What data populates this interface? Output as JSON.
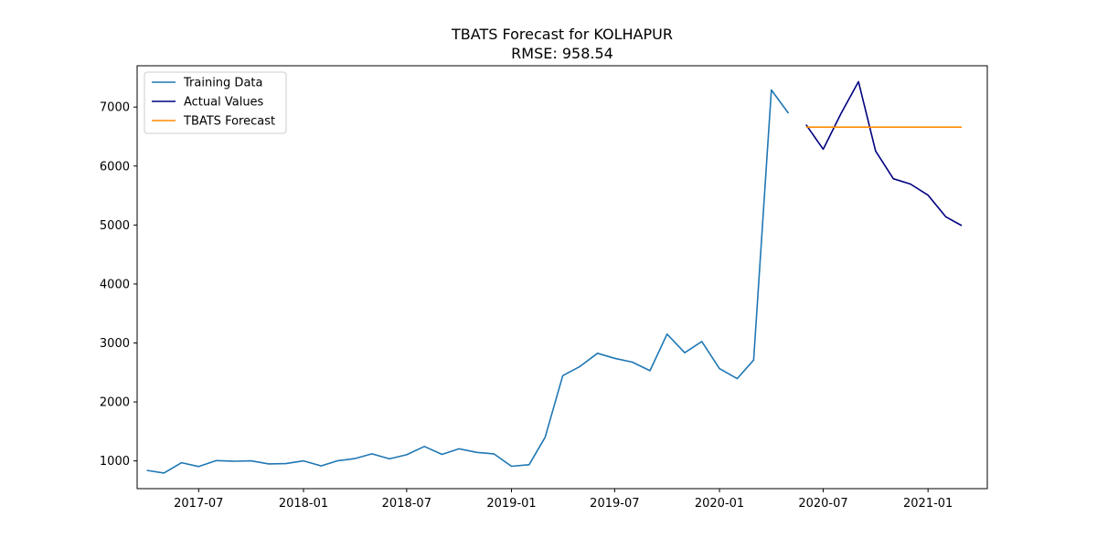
{
  "chart_data": {
    "type": "line",
    "title": "TBATS Forecast for KOLHAPUR",
    "subtitle": "RMSE: 958.54",
    "xlabel": "",
    "ylabel": "",
    "x_range": [
      "2017-03-15",
      "2021-04-15"
    ],
    "ylim": [
      530,
      7700
    ],
    "x_ticks": [
      {
        "date": "2017-07-01",
        "label": "2017-07"
      },
      {
        "date": "2018-01-01",
        "label": "2018-01"
      },
      {
        "date": "2018-07-01",
        "label": "2018-07"
      },
      {
        "date": "2019-01-01",
        "label": "2019-01"
      },
      {
        "date": "2019-07-01",
        "label": "2019-07"
      },
      {
        "date": "2020-01-01",
        "label": "2020-01"
      },
      {
        "date": "2020-07-01",
        "label": "2020-07"
      },
      {
        "date": "2021-01-01",
        "label": "2021-01"
      }
    ],
    "y_ticks": [
      1000,
      2000,
      3000,
      4000,
      5000,
      6000,
      7000
    ],
    "grid": false,
    "legend_position": "top-left",
    "series": [
      {
        "name": "Training Data",
        "color": "#1f77b4",
        "points": [
          [
            "2017-04-01",
            840
          ],
          [
            "2017-05-01",
            795
          ],
          [
            "2017-06-01",
            970
          ],
          [
            "2017-07-01",
            905
          ],
          [
            "2017-08-01",
            1005
          ],
          [
            "2017-09-01",
            995
          ],
          [
            "2017-10-01",
            1000
          ],
          [
            "2017-11-01",
            950
          ],
          [
            "2017-12-01",
            955
          ],
          [
            "2018-01-01",
            1000
          ],
          [
            "2018-02-01",
            915
          ],
          [
            "2018-03-01",
            1000
          ],
          [
            "2018-04-01",
            1040
          ],
          [
            "2018-05-01",
            1120
          ],
          [
            "2018-06-01",
            1035
          ],
          [
            "2018-07-01",
            1105
          ],
          [
            "2018-08-01",
            1245
          ],
          [
            "2018-09-01",
            1110
          ],
          [
            "2018-10-01",
            1205
          ],
          [
            "2018-11-01",
            1145
          ],
          [
            "2018-12-01",
            1120
          ],
          [
            "2019-01-01",
            910
          ],
          [
            "2019-02-01",
            935
          ],
          [
            "2019-03-01",
            1400
          ],
          [
            "2019-04-01",
            2445
          ],
          [
            "2019-05-01",
            2600
          ],
          [
            "2019-06-01",
            2825
          ],
          [
            "2019-07-01",
            2740
          ],
          [
            "2019-08-01",
            2675
          ],
          [
            "2019-09-01",
            2530
          ],
          [
            "2019-10-01",
            3150
          ],
          [
            "2019-11-01",
            2835
          ],
          [
            "2019-12-01",
            3025
          ],
          [
            "2020-01-01",
            2565
          ],
          [
            "2020-02-01",
            2395
          ],
          [
            "2020-03-01",
            2710
          ],
          [
            "2020-04-01",
            7290
          ],
          [
            "2020-05-01",
            6895
          ]
        ]
      },
      {
        "name": "Actual Values",
        "color": "#000080",
        "points": [
          [
            "2020-06-01",
            6700
          ],
          [
            "2020-07-01",
            6285
          ],
          [
            "2020-08-01",
            6885
          ],
          [
            "2020-09-01",
            7430
          ],
          [
            "2020-10-01",
            6255
          ],
          [
            "2020-11-01",
            5785
          ],
          [
            "2020-12-01",
            5695
          ],
          [
            "2021-01-01",
            5505
          ],
          [
            "2021-02-01",
            5140
          ],
          [
            "2021-03-01",
            4990
          ]
        ]
      },
      {
        "name": "TBATS Forecast",
        "color": "#ff8c00",
        "points": [
          [
            "2020-06-01",
            6660
          ],
          [
            "2020-07-01",
            6660
          ],
          [
            "2020-08-01",
            6660
          ],
          [
            "2020-09-01",
            6660
          ],
          [
            "2020-10-01",
            6660
          ],
          [
            "2020-11-01",
            6660
          ],
          [
            "2020-12-01",
            6660
          ],
          [
            "2021-01-01",
            6660
          ],
          [
            "2021-02-01",
            6660
          ],
          [
            "2021-03-01",
            6660
          ]
        ]
      }
    ]
  }
}
